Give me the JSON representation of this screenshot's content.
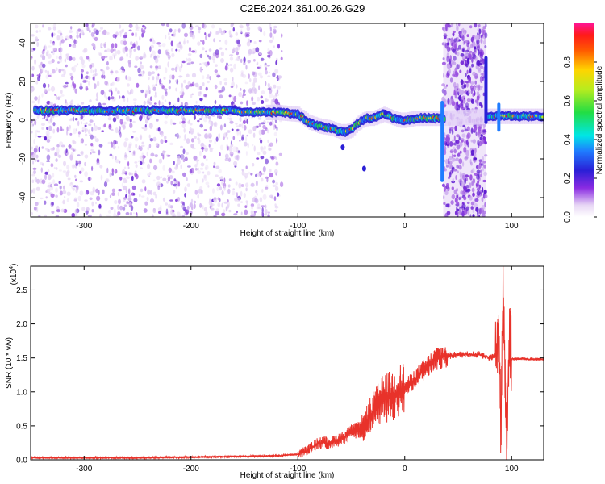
{
  "figure_title": "C2E6.2024.361.00.26.G29",
  "chart_data": [
    {
      "type": "heatmap",
      "xlabel": "Height of straight line (km)",
      "ylabel": "Frequency (Hz)",
      "xlim": [
        -350,
        130
      ],
      "ylim": [
        -50,
        50
      ],
      "x_ticks": [
        -300,
        -200,
        -100,
        0,
        100
      ],
      "y_ticks": [
        -40,
        -20,
        0,
        20,
        40
      ],
      "colorbar": {
        "label": "Normalized spectral amplitude",
        "range": [
          0,
          1
        ],
        "ticks": [
          0.0,
          0.2,
          0.4,
          0.6,
          0.8
        ],
        "tick_labels": [
          "0.0",
          "0.2",
          "0.4",
          "0.6",
          "0.8"
        ]
      },
      "ridge_line": {
        "x": [
          -345,
          -320,
          -300,
          -280,
          -260,
          -240,
          -220,
          -200,
          -180,
          -160,
          -140,
          -120,
          -100,
          -90,
          -80,
          -70,
          -60,
          -55,
          -50,
          -45,
          -40,
          -35,
          -30,
          -25,
          -20,
          -15,
          -10,
          -5,
          0,
          10,
          20,
          30,
          35,
          80,
          90,
          100,
          110,
          120,
          130
        ],
        "y": [
          5,
          5,
          5,
          5,
          5,
          5,
          5,
          5,
          5,
          5,
          4,
          4,
          3,
          -1,
          -3,
          -4,
          -6,
          -6,
          -5,
          -2,
          0,
          1,
          1,
          2,
          3,
          2,
          1,
          0,
          0,
          1,
          1,
          1,
          1,
          2,
          2,
          2,
          2,
          2,
          2
        ]
      }
    },
    {
      "type": "line",
      "xlabel": "Height of straight line (km)",
      "ylabel": "SNR (10 * v/v)",
      "y_scale_label": "(x10",
      "y_scale_exponent": "4",
      "xlim": [
        -350,
        130
      ],
      "ylim": [
        0,
        2.85
      ],
      "x_ticks": [
        -300,
        -200,
        -100,
        0,
        100
      ],
      "y_ticks": [
        0.0,
        0.5,
        1.0,
        1.5,
        2.0,
        2.5
      ],
      "y_tick_labels": [
        "0.0",
        "0.5",
        "1.0",
        "1.5",
        "2.0",
        "2.5"
      ],
      "series": [
        {
          "color": "#e8322a",
          "x": [
            -350,
            -300,
            -250,
            -200,
            -150,
            -120,
            -100,
            -90,
            -80,
            -70,
            -60,
            -50,
            -40,
            -30,
            -20,
            -10,
            0,
            10,
            20,
            30,
            40,
            50,
            60,
            70,
            80,
            85,
            88,
            90,
            92,
            95,
            98,
            100,
            110,
            120,
            130
          ],
          "y": [
            0.03,
            0.03,
            0.03,
            0.04,
            0.05,
            0.06,
            0.08,
            0.15,
            0.25,
            0.25,
            0.3,
            0.4,
            0.45,
            0.7,
            0.9,
            0.95,
            1.05,
            1.2,
            1.35,
            1.5,
            1.53,
            1.55,
            1.55,
            1.55,
            1.5,
            1.55,
            2.0,
            0.4,
            2.7,
            0.3,
            1.8,
            1.48,
            1.49,
            1.48,
            1.48
          ]
        }
      ]
    }
  ]
}
